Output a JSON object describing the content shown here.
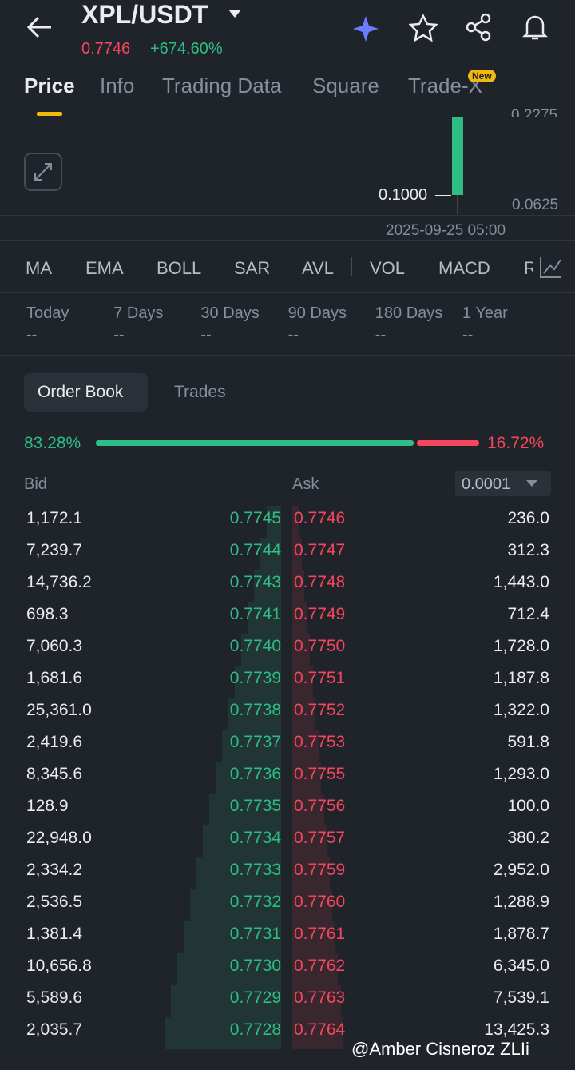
{
  "header": {
    "pair": "XPL/USDT",
    "price": "0.7746",
    "change": "+674.60%"
  },
  "tabs": [
    "Price",
    "Info",
    "Trading Data",
    "Square",
    "Trade-X"
  ],
  "tab_badge": "New",
  "chart": {
    "price_top": "0.2275",
    "price_mark": "0.1000",
    "price_bottom": "0.0625",
    "time": "2025-09-25 05:00"
  },
  "indicators": [
    "MA",
    "EMA",
    "BOLL",
    "SAR",
    "AVL",
    "VOL",
    "MACD",
    "R"
  ],
  "periods": [
    {
      "label": "Today",
      "value": "--"
    },
    {
      "label": "7 Days",
      "value": "--"
    },
    {
      "label": "30 Days",
      "value": "--"
    },
    {
      "label": "90 Days",
      "value": "--"
    },
    {
      "label": "180 Days",
      "value": "--"
    },
    {
      "label": "1 Year",
      "value": "--"
    }
  ],
  "book_tabs": [
    "Order Book",
    "Trades"
  ],
  "ratio": {
    "bid": "83.28%",
    "ask": "16.72%"
  },
  "columns": {
    "bid": "Bid",
    "ask": "Ask",
    "precision": "0.0001"
  },
  "rows": [
    [
      "1,172.1",
      "0.7745",
      "0.7746",
      "236.0"
    ],
    [
      "7,239.7",
      "0.7744",
      "0.7747",
      "312.3"
    ],
    [
      "14,736.2",
      "0.7743",
      "0.7748",
      "1,443.0"
    ],
    [
      "698.3",
      "0.7741",
      "0.7749",
      "712.4"
    ],
    [
      "7,060.3",
      "0.7740",
      "0.7750",
      "1,728.0"
    ],
    [
      "1,681.6",
      "0.7739",
      "0.7751",
      "1,187.8"
    ],
    [
      "25,361.0",
      "0.7738",
      "0.7752",
      "1,322.0"
    ],
    [
      "2,419.6",
      "0.7737",
      "0.7753",
      "591.8"
    ],
    [
      "8,345.6",
      "0.7736",
      "0.7755",
      "1,293.0"
    ],
    [
      "128.9",
      "0.7735",
      "0.7756",
      "100.0"
    ],
    [
      "22,948.0",
      "0.7734",
      "0.7757",
      "380.2"
    ],
    [
      "2,334.2",
      "0.7733",
      "0.7759",
      "2,952.0"
    ],
    [
      "2,536.5",
      "0.7732",
      "0.7760",
      "1,288.9"
    ],
    [
      "1,381.4",
      "0.7731",
      "0.7761",
      "1,878.7"
    ],
    [
      "10,656.8",
      "0.7730",
      "0.7762",
      "6,345.0"
    ],
    [
      "5,589.6",
      "0.7729",
      "0.7763",
      "7,539.1"
    ],
    [
      "2,035.7",
      "0.7728",
      "0.7764",
      "13,425.3"
    ]
  ],
  "watermark": "@Amber Cisneroz ZLIi"
}
